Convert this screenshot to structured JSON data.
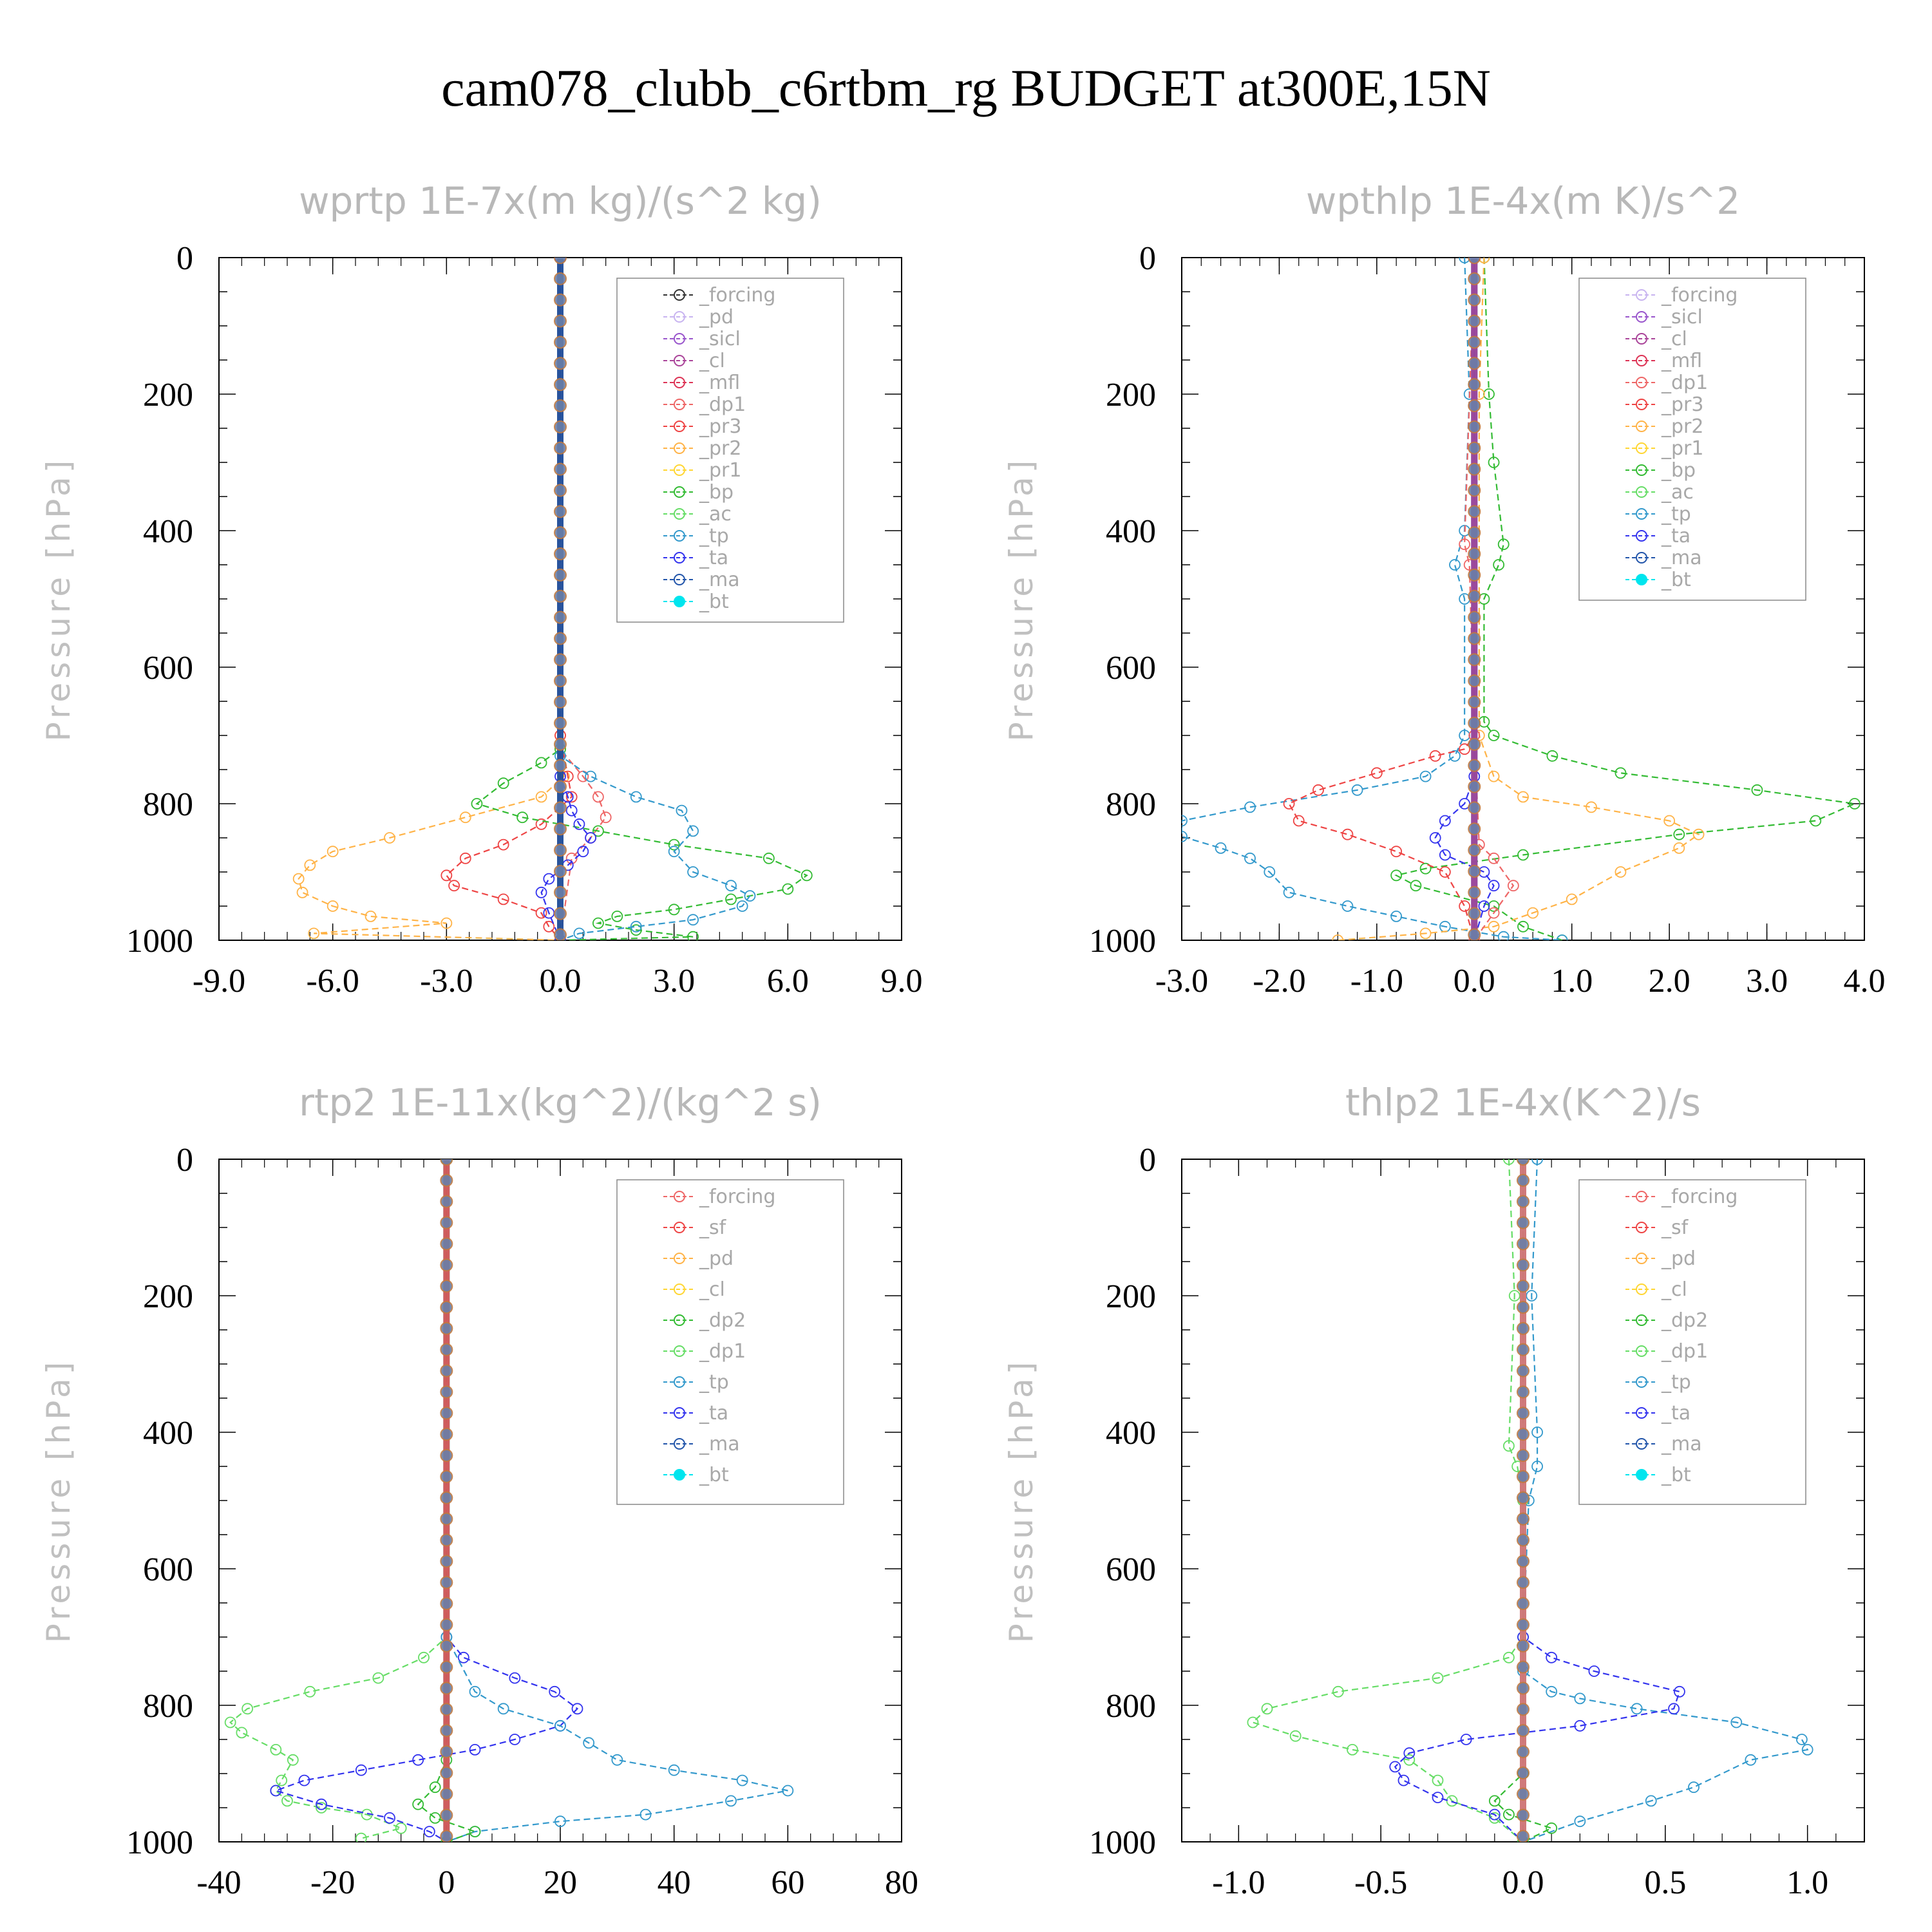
{
  "title": "cam078_clubb_c6rtbm_rg  BUDGET at300E,15N",
  "colors": {
    "forcing_black": "#333333",
    "pd": "#c8b4f0",
    "sicl": "#9955cc",
    "cl_purple": "#aa4499",
    "mfl": "#dd3355",
    "red": "#ee4444",
    "orange": "#ffb347",
    "yellow": "#ffd633",
    "green": "#33bb33",
    "lightgreen": "#66dd66",
    "teal": "#3399cc",
    "blue": "#3333ee",
    "cyan": "#00e5ee",
    "darkblue": "#2255aa"
  },
  "chart_data": [
    {
      "type": "line",
      "title": "wprtp  1E-7x(m kg)/(s^2 kg)",
      "ylabel": "Pressure [hPa]",
      "xlim": [
        -9,
        9
      ],
      "ylim": [
        1000,
        0
      ],
      "xticks": [
        "-9.0",
        "-6.0",
        "-3.0",
        "0.0",
        "3.0",
        "6.0",
        "9.0"
      ],
      "yticks": [
        "0",
        "200",
        "400",
        "600",
        "800",
        "1000"
      ],
      "legend": [
        "_forcing",
        "_pd",
        "_sicl",
        "_cl",
        "_mfl",
        "_dp1",
        "_pr3",
        "_pr2",
        "_pr1",
        "_bp",
        "_ac",
        "_tp",
        "_ta",
        "_ma",
        "_bt"
      ],
      "legend_colors": [
        "#333333",
        "#c8b4f0",
        "#9955cc",
        "#aa4499",
        "#dd3355",
        "#ee6666",
        "#ee4444",
        "#ffb347",
        "#ffd633",
        "#33bb33",
        "#66dd66",
        "#3399cc",
        "#3333ee",
        "#2255aa",
        "#00e5ee"
      ],
      "series": [
        {
          "name": "_pr2",
          "color": "#ffb347",
          "x": [
            0,
            0,
            0.1,
            -0.5,
            -2.5,
            -4.5,
            -6.0,
            -6.6,
            -6.9,
            -6.8,
            -6.0,
            -5.0,
            -3.0,
            -6.5,
            0
          ],
          "y": [
            0,
            700,
            760,
            790,
            820,
            850,
            870,
            890,
            910,
            930,
            950,
            965,
            975,
            990,
            1000
          ]
        },
        {
          "name": "_pr3",
          "color": "#ee4444",
          "x": [
            0,
            0,
            0.2,
            0.3,
            -0.5,
            -1.5,
            -2.5,
            -3.0,
            -2.8,
            -1.5,
            -0.5,
            -0.3,
            0
          ],
          "y": [
            0,
            700,
            760,
            790,
            830,
            860,
            880,
            905,
            920,
            940,
            960,
            980,
            1000
          ]
        },
        {
          "name": "_dp1",
          "color": "#ee6666",
          "x": [
            0,
            0,
            0.6,
            1.0,
            1.2,
            0.8,
            0.3,
            0
          ],
          "y": [
            0,
            720,
            760,
            790,
            820,
            850,
            880,
            1000
          ]
        },
        {
          "name": "_bp",
          "color": "#33bb33",
          "x": [
            0,
            0,
            -0.5,
            -1.5,
            -2.2,
            -1.0,
            1.0,
            3.0,
            5.5,
            6.5,
            6.0,
            4.5,
            3.0,
            1.5,
            1.0,
            2.0,
            3.5,
            0
          ],
          "y": [
            0,
            720,
            740,
            770,
            800,
            820,
            840,
            860,
            880,
            905,
            925,
            940,
            955,
            965,
            975,
            985,
            995,
            1000
          ]
        },
        {
          "name": "_tp",
          "color": "#3399cc",
          "x": [
            0,
            0,
            0.8,
            2.0,
            3.2,
            3.5,
            3.0,
            3.5,
            4.5,
            5.0,
            4.8,
            3.5,
            2.0,
            0.5,
            0
          ],
          "y": [
            0,
            730,
            760,
            790,
            810,
            840,
            870,
            900,
            920,
            935,
            950,
            970,
            980,
            990,
            1000
          ]
        },
        {
          "name": "_ta",
          "color": "#3333ee",
          "x": [
            0,
            0,
            0.2,
            0.3,
            0.5,
            0.8,
            0.6,
            0.2,
            -0.3,
            -0.5,
            -0.3,
            0
          ],
          "y": [
            0,
            760,
            790,
            810,
            830,
            850,
            870,
            890,
            910,
            930,
            960,
            1000
          ]
        },
        {
          "name": "_forcing",
          "color": "#333333",
          "x": [
            0,
            0
          ],
          "y": [
            0,
            1000
          ]
        },
        {
          "name": "_bt",
          "color": "#2255aa",
          "x": [
            0,
            0
          ],
          "y": [
            0,
            1000
          ]
        }
      ]
    },
    {
      "type": "line",
      "title": "wpthlp  1E-4x(m K)/s^2",
      "ylabel": "Pressure [hPa]",
      "xlim": [
        -3,
        4
      ],
      "ylim": [
        1000,
        0
      ],
      "xticks": [
        "-3.0",
        "-2.0",
        "-1.0",
        "0.0",
        "1.0",
        "2.0",
        "3.0",
        "4.0"
      ],
      "yticks": [
        "0",
        "200",
        "400",
        "600",
        "800",
        "1000"
      ],
      "legend": [
        "_forcing",
        "_sicl",
        "_cl",
        "_mfl",
        "_dp1",
        "_pr3",
        "_pr2",
        "_pr1",
        "_bp",
        "_ac",
        "_tp",
        "_ta",
        "_ma",
        "_bt"
      ],
      "legend_colors": [
        "#c8b4f0",
        "#9955cc",
        "#aa4499",
        "#dd3355",
        "#ee6666",
        "#ee4444",
        "#ffb347",
        "#ffd633",
        "#33bb33",
        "#66dd66",
        "#3399cc",
        "#3333ee",
        "#2255aa",
        "#00e5ee"
      ],
      "series": [
        {
          "name": "_bp",
          "color": "#33bb33",
          "x": [
            0.1,
            0.15,
            0.2,
            0.3,
            0.25,
            0.1,
            0.1,
            0.2,
            0.8,
            1.5,
            2.9,
            3.9,
            3.5,
            2.1,
            0.5,
            -0.5,
            -0.8,
            -0.6,
            0.2,
            0.5,
            0.9
          ],
          "y": [
            0,
            200,
            300,
            420,
            450,
            500,
            680,
            700,
            730,
            755,
            780,
            800,
            825,
            845,
            875,
            895,
            905,
            920,
            950,
            980,
            1000
          ]
        },
        {
          "name": "_tp",
          "color": "#3399cc",
          "x": [
            -0.1,
            -0.05,
            -0.1,
            -0.2,
            -0.1,
            -0.1,
            -0.2,
            -0.5,
            -1.2,
            -2.3,
            -3.0,
            -3.0,
            -2.6,
            -2.3,
            -2.1,
            -1.9,
            -1.3,
            -0.8,
            -0.3,
            0.3,
            0.9
          ],
          "y": [
            0,
            200,
            400,
            450,
            500,
            700,
            730,
            760,
            780,
            805,
            825,
            848,
            865,
            880,
            900,
            930,
            950,
            965,
            980,
            995,
            1000
          ]
        },
        {
          "name": "_pr2",
          "color": "#ffb347",
          "x": [
            0.1,
            0.05,
            0.05,
            0.2,
            0.5,
            1.2,
            2.0,
            2.3,
            2.1,
            1.5,
            1.0,
            0.6,
            0.2,
            -0.5,
            -1.4
          ],
          "y": [
            0,
            200,
            700,
            760,
            790,
            805,
            825,
            845,
            865,
            900,
            940,
            960,
            980,
            990,
            1000
          ]
        },
        {
          "name": "_pr3",
          "color": "#ee4444",
          "x": [
            0,
            0,
            -0.1,
            -0.4,
            -1.0,
            -1.6,
            -1.9,
            -1.8,
            -1.3,
            -0.8,
            -0.3,
            -0.1,
            0
          ],
          "y": [
            0,
            700,
            720,
            730,
            755,
            780,
            800,
            825,
            845,
            870,
            900,
            950,
            1000
          ]
        },
        {
          "name": "_ta",
          "color": "#3333ee",
          "x": [
            0,
            0,
            -0.1,
            -0.3,
            -0.4,
            -0.3,
            0.1,
            0.2,
            0.1,
            0
          ],
          "y": [
            0,
            760,
            800,
            825,
            850,
            875,
            900,
            920,
            950,
            1000
          ]
        },
        {
          "name": "_dp1",
          "color": "#ee6666",
          "x": [
            0,
            -0.1,
            -0.05,
            0,
            0.05,
            0.2,
            0.4,
            0.2,
            0
          ],
          "y": [
            0,
            420,
            450,
            700,
            860,
            880,
            920,
            960,
            1000
          ]
        },
        {
          "name": "_bt",
          "color": "#2255aa",
          "x": [
            0,
            0
          ],
          "y": [
            0,
            1000
          ]
        },
        {
          "name": "_cl",
          "color": "#aa4499",
          "x": [
            0,
            0
          ],
          "y": [
            0,
            1000
          ]
        }
      ]
    },
    {
      "type": "line",
      "title": "rtp2  1E-11x(kg^2)/(kg^2 s)",
      "ylabel": "Pressure [hPa]",
      "xlim": [
        -40,
        80
      ],
      "ylim": [
        1000,
        0
      ],
      "xticks": [
        "-40",
        "-20",
        "0",
        "20",
        "40",
        "60",
        "80"
      ],
      "yticks": [
        "0",
        "200",
        "400",
        "600",
        "800",
        "1000"
      ],
      "legend": [
        "_forcing",
        "_sf",
        "_pd",
        "_cl",
        "_dp2",
        "_dp1",
        "_tp",
        "_ta",
        "_ma",
        "_bt"
      ],
      "legend_colors": [
        "#ee6666",
        "#ee4444",
        "#ffb347",
        "#ffd633",
        "#33bb33",
        "#66dd66",
        "#3399cc",
        "#3333ee",
        "#2255aa",
        "#00e5ee"
      ],
      "series": [
        {
          "name": "_dp1",
          "color": "#66dd66",
          "x": [
            0,
            0,
            -4,
            -12,
            -24,
            -35,
            -38,
            -36,
            -30,
            -27,
            -29,
            -30,
            -28,
            -22,
            -14,
            -8,
            -15
          ],
          "y": [
            0,
            700,
            730,
            760,
            780,
            805,
            825,
            840,
            865,
            880,
            910,
            925,
            940,
            950,
            960,
            980,
            995
          ]
        },
        {
          "name": "_ta",
          "color": "#3333ee",
          "x": [
            0,
            0,
            3,
            12,
            19,
            23,
            20,
            12,
            5,
            -5,
            -15,
            -25,
            -30,
            -22,
            -10,
            -3,
            0
          ],
          "y": [
            0,
            700,
            730,
            760,
            780,
            805,
            830,
            850,
            865,
            880,
            895,
            910,
            925,
            945,
            965,
            985,
            1000
          ]
        },
        {
          "name": "_tp",
          "color": "#3399cc",
          "x": [
            0,
            0,
            5,
            10,
            20,
            25,
            30,
            40,
            52,
            60,
            50,
            35,
            20,
            5,
            0
          ],
          "y": [
            0,
            700,
            780,
            805,
            830,
            855,
            880,
            895,
            910,
            925,
            940,
            960,
            970,
            985,
            1000
          ]
        },
        {
          "name": "_dp2",
          "color": "#33bb33",
          "x": [
            0,
            0,
            -2,
            -5,
            -2,
            5,
            0
          ],
          "y": [
            0,
            880,
            920,
            945,
            965,
            985,
            1000
          ]
        },
        {
          "name": "_bt",
          "color": "#00e5ee",
          "x": [
            0,
            0
          ],
          "y": [
            0,
            1000
          ]
        },
        {
          "name": "_sf",
          "color": "#ee4444",
          "x": [
            0,
            0
          ],
          "y": [
            0,
            1000
          ]
        }
      ]
    },
    {
      "type": "line",
      "title": "thlp2  1E-4x(K^2)/s",
      "ylabel": "Pressure [hPa]",
      "xlim": [
        -1.2,
        1.2
      ],
      "ylim": [
        1000,
        0
      ],
      "xticks": [
        "-1.0",
        "-0.5",
        "0.0",
        "0.5",
        "1.0"
      ],
      "yticks": [
        "0",
        "200",
        "400",
        "600",
        "800",
        "1000"
      ],
      "legend": [
        "_forcing",
        "_sf",
        "_pd",
        "_cl",
        "_dp2",
        "_dp1",
        "_tp",
        "_ta",
        "_ma",
        "_bt"
      ],
      "legend_colors": [
        "#ee6666",
        "#ee4444",
        "#ffb347",
        "#ffd633",
        "#33bb33",
        "#66dd66",
        "#3399cc",
        "#3333ee",
        "#2255aa",
        "#00e5ee"
      ],
      "series": [
        {
          "name": "_dp1",
          "color": "#66dd66",
          "x": [
            -0.05,
            -0.03,
            -0.05,
            -0.02,
            0,
            0,
            -0.05,
            -0.3,
            -0.65,
            -0.9,
            -0.95,
            -0.8,
            -0.6,
            -0.4,
            -0.3,
            -0.25,
            -0.1,
            0
          ],
          "y": [
            0,
            200,
            420,
            450,
            500,
            700,
            730,
            760,
            780,
            805,
            825,
            845,
            865,
            880,
            910,
            940,
            965,
            1000
          ]
        },
        {
          "name": "_tp",
          "color": "#3399cc",
          "x": [
            0.05,
            0.03,
            0.05,
            0.05,
            0.02,
            0,
            0,
            0.1,
            0.2,
            0.4,
            0.75,
            0.98,
            1.0,
            0.8,
            0.6,
            0.45,
            0.2,
            0
          ],
          "y": [
            0,
            200,
            400,
            450,
            500,
            700,
            750,
            780,
            790,
            805,
            825,
            850,
            865,
            880,
            920,
            940,
            970,
            1000
          ]
        },
        {
          "name": "_ta",
          "color": "#3333ee",
          "x": [
            0,
            0,
            0.1,
            0.25,
            0.55,
            0.53,
            0.2,
            -0.2,
            -0.4,
            -0.45,
            -0.42,
            -0.3,
            -0.1,
            0
          ],
          "y": [
            0,
            700,
            730,
            750,
            780,
            805,
            830,
            850,
            870,
            890,
            910,
            935,
            960,
            1000
          ]
        },
        {
          "name": "_dp2",
          "color": "#33bb33",
          "x": [
            0,
            0,
            -0.1,
            -0.05,
            0.1,
            0
          ],
          "y": [
            0,
            900,
            940,
            960,
            980,
            1000
          ]
        },
        {
          "name": "_bt",
          "color": "#00e5ee",
          "x": [
            0,
            0
          ],
          "y": [
            0,
            1000
          ]
        },
        {
          "name": "_forcing",
          "color": "#ee6666",
          "x": [
            0,
            0
          ],
          "y": [
            0,
            1000
          ]
        }
      ]
    }
  ]
}
